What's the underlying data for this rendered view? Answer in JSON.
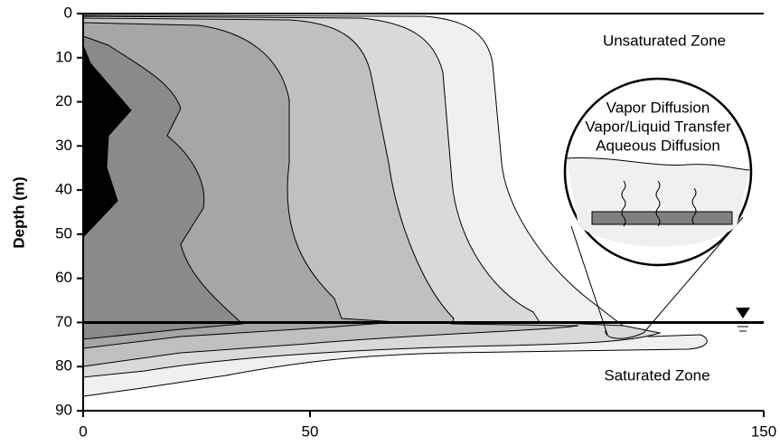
{
  "chart_data": {
    "type": "contour",
    "ylabel": "Depth (m)",
    "ylim": [
      0,
      90
    ],
    "yticks": [
      0,
      10,
      20,
      30,
      40,
      50,
      60,
      70,
      80,
      90
    ],
    "xlim": [
      0,
      150
    ],
    "xticks": [
      0,
      50,
      150
    ],
    "water_table_depth": 70,
    "annotations": {
      "upper": "Unsaturated Zone",
      "lower": "Saturated Zone",
      "inset": [
        "Vapor Diffusion",
        "Vapor/Liquid Transfer",
        "Aqueous Diffusion"
      ]
    }
  }
}
